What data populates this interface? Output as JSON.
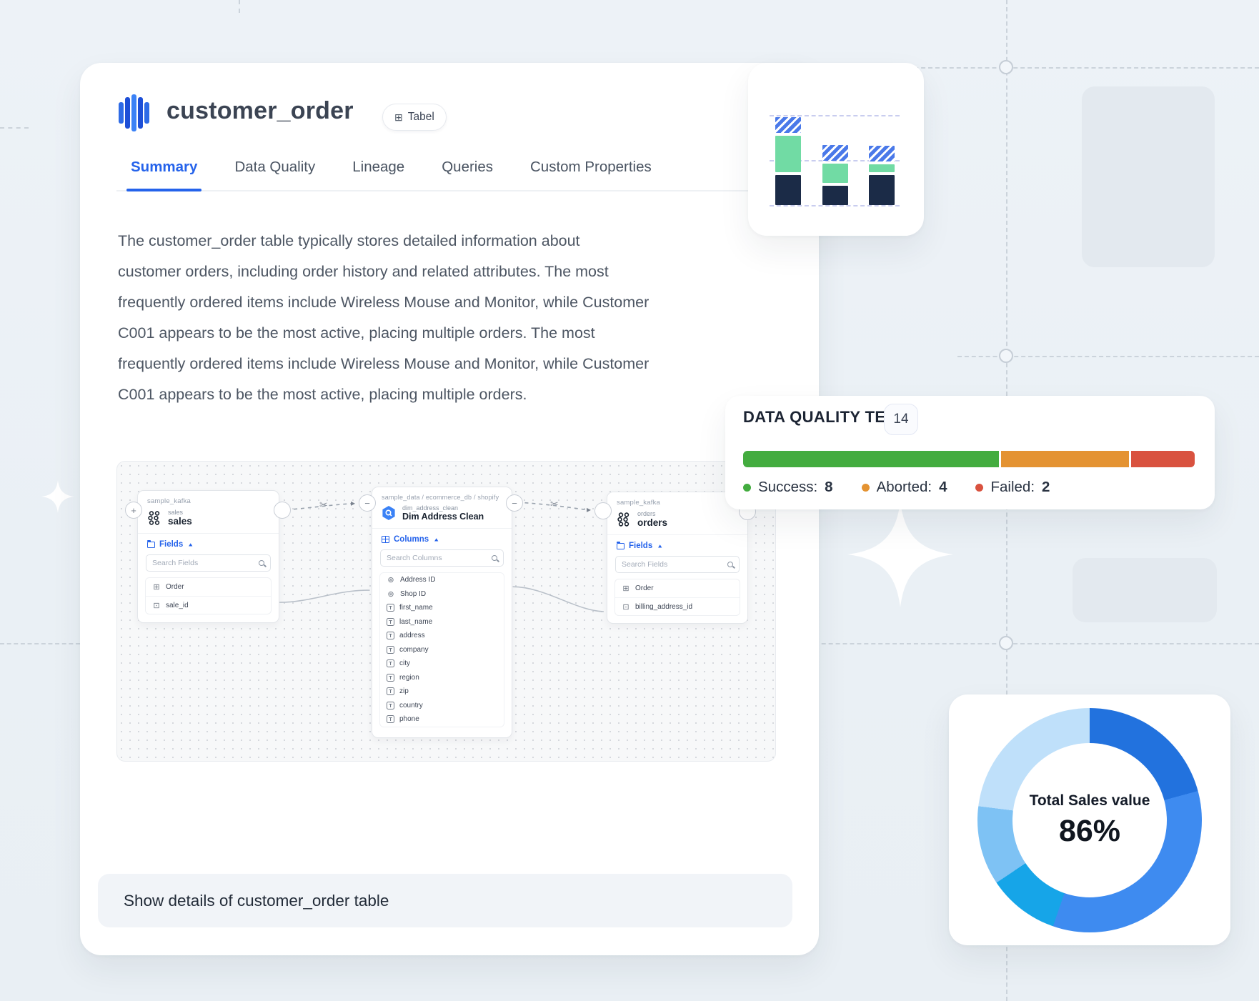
{
  "table_card": {
    "title": "customer_order",
    "type_badge": "Tabel",
    "tabs": [
      {
        "label": "Summary",
        "active": true
      },
      {
        "label": "Data Quality",
        "active": false
      },
      {
        "label": "Lineage",
        "active": false
      },
      {
        "label": "Queries",
        "active": false
      },
      {
        "label": "Custom Properties",
        "active": false
      }
    ],
    "summary_lines": [
      "The customer_order table typically stores detailed information about",
      "customer orders, including order history and related attributes. The most",
      "frequently ordered items include Wireless Mouse and Monitor, while Customer",
      "C001 appears to be the most active, placing multiple orders. The most",
      "frequently ordered items include Wireless Mouse and Monitor, while Customer",
      "C001 appears to be the most active, placing multiple orders."
    ],
    "prompt_value": "Show details of customer_order table"
  },
  "lineage": {
    "nodes": [
      {
        "breadcrumb": "sample_kafka",
        "subtitle": "sales",
        "title": "sales",
        "section_label": "Fields",
        "search_placeholder": "Search Fields",
        "rows": [
          {
            "label": "Order"
          },
          {
            "label": "sale_id"
          }
        ]
      },
      {
        "breadcrumb": "sample_data  /  ecommerce_db  /  shopify",
        "subtitle": "dim_address_clean",
        "title": "Dim Address Clean",
        "section_label": "Columns",
        "search_placeholder": "Search Columns",
        "rows": [
          {
            "label": "Address ID"
          },
          {
            "label": "Shop ID"
          },
          {
            "label": "first_name"
          },
          {
            "label": "last_name"
          },
          {
            "label": "address"
          },
          {
            "label": "company"
          },
          {
            "label": "city"
          },
          {
            "label": "region"
          },
          {
            "label": "zip"
          },
          {
            "label": "country"
          },
          {
            "label": "phone"
          }
        ]
      },
      {
        "breadcrumb": "sample_kafka",
        "subtitle": "orders",
        "title": "orders",
        "section_label": "Fields",
        "search_placeholder": "Search Fields",
        "rows": [
          {
            "label": "Order"
          },
          {
            "label": "billing_address_id"
          }
        ]
      }
    ]
  },
  "quality_card": {
    "title": "DATA QUALITY TESTS",
    "count": "14",
    "legend": [
      {
        "label": "Success:",
        "value": "8",
        "color": "#43AC3F"
      },
      {
        "label": "Aborted:",
        "value": "4",
        "color": "#E49332"
      },
      {
        "label": "Failed:",
        "value": "2",
        "color": "#D9523F"
      }
    ]
  },
  "donut_card": {
    "label": "Total Sales value",
    "value": "86%"
  },
  "chart_data": [
    {
      "type": "bar",
      "stacked": true,
      "title": "mini stacked bar widget (no axis labels shown)",
      "categories": [
        "bar-1",
        "bar-2",
        "bar-3"
      ],
      "series": [
        {
          "name": "navy",
          "color": "#1B2B47",
          "values": [
            42,
            27,
            42
          ]
        },
        {
          "name": "green",
          "color": "#71DBA4",
          "values": [
            51,
            27,
            11
          ]
        },
        {
          "name": "blue-hatched",
          "color": "#4A79E9",
          "values": [
            22,
            22,
            22
          ]
        }
      ],
      "gridlines": 3,
      "axis": "none"
    },
    {
      "type": "donut",
      "title": "Total Sales value",
      "center_value": "86%",
      "segments": [
        {
          "name": "segment-1",
          "color": "#2272DE",
          "pct": 20.8
        },
        {
          "name": "segment-2",
          "color": "#3E8BF0",
          "pct": 34.5
        },
        {
          "name": "segment-3",
          "color": "#16A5E8",
          "pct": 10.3
        },
        {
          "name": "segment-4",
          "color": "#7EC2F4",
          "pct": 11.4
        },
        {
          "name": "segment-5",
          "color": "#BFE0FA",
          "pct": 23.0
        }
      ]
    },
    {
      "type": "stacked-progress",
      "title": "DATA QUALITY TESTS",
      "total": 14,
      "values": [
        {
          "name": "Success",
          "value": 8,
          "color": "#43AC3F"
        },
        {
          "name": "Aborted",
          "value": 4,
          "color": "#E49332"
        },
        {
          "name": "Failed",
          "value": 2,
          "color": "#D9523F"
        }
      ]
    }
  ]
}
